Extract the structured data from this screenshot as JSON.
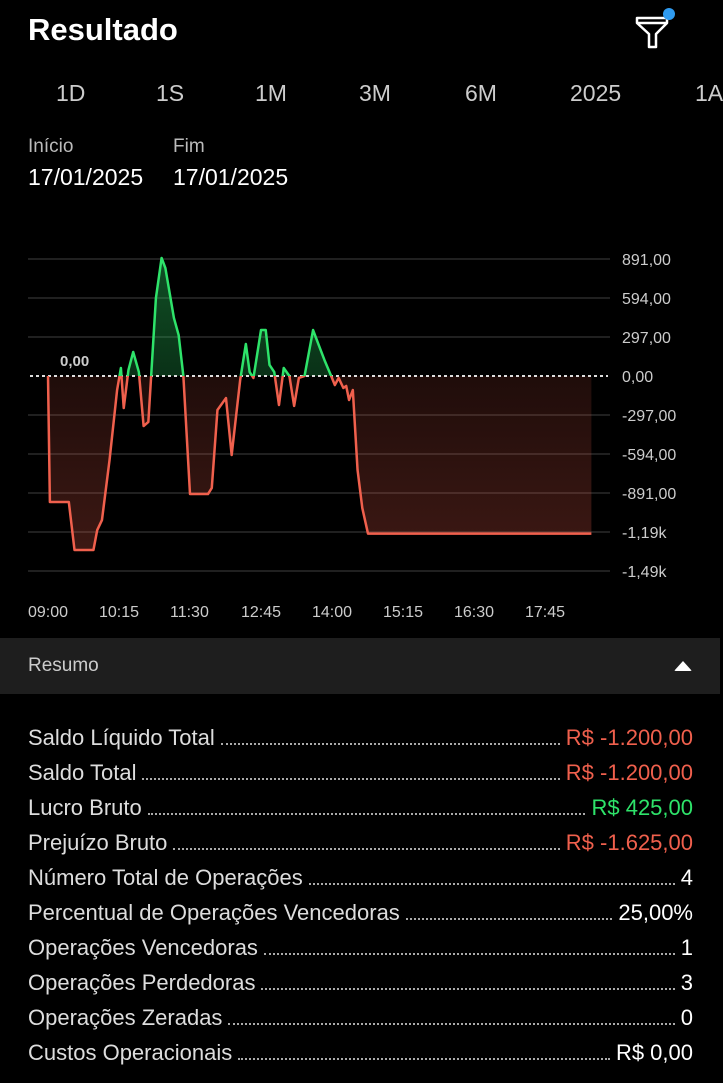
{
  "header": {
    "title": "Resultado",
    "filter_icon": "filter-icon",
    "badge_color": "#2f9bf0"
  },
  "periods": [
    "1D",
    "1S",
    "1M",
    "3M",
    "6M",
    "2025",
    "1A"
  ],
  "dates": {
    "start_label": "Início",
    "start_value": "17/01/2025",
    "end_label": "Fim",
    "end_value": "17/01/2025"
  },
  "chart_data": {
    "type": "area",
    "zero_label": "0,00",
    "y_ticks": [
      "891,00",
      "594,00",
      "297,00",
      "0,00",
      "-297,00",
      "-594,00",
      "-891,00",
      "-1,19k",
      "-1,49k"
    ],
    "y_tick_values": [
      891,
      594,
      297,
      0,
      -297,
      -594,
      -891,
      -1188,
      -1485
    ],
    "x_ticks": [
      "09:00",
      "10:15",
      "11:30",
      "12:45",
      "14:00",
      "15:15",
      "16:30",
      "17:45"
    ],
    "ylim": [
      -1485,
      891
    ],
    "colors": {
      "positive": "#2ee36a",
      "negative": "#f0604d"
    },
    "grid": true,
    "points": [
      [
        "09:00",
        0
      ],
      [
        "09:02",
        -960
      ],
      [
        "09:22",
        -960
      ],
      [
        "09:28",
        -1325
      ],
      [
        "09:48",
        -1325
      ],
      [
        "09:52",
        -1173
      ],
      [
        "09:57",
        -1097
      ],
      [
        "10:05",
        -640
      ],
      [
        "10:13",
        -107
      ],
      [
        "10:17",
        61
      ],
      [
        "10:20",
        -244
      ],
      [
        "10:25",
        46
      ],
      [
        "10:30",
        183
      ],
      [
        "10:36",
        30
      ],
      [
        "10:41",
        -381
      ],
      [
        "10:46",
        -350
      ],
      [
        "10:54",
        594
      ],
      [
        "11:00",
        899
      ],
      [
        "11:04",
        822
      ],
      [
        "11:13",
        442
      ],
      [
        "11:18",
        312
      ],
      [
        "11:23",
        0
      ],
      [
        "11:30",
        -899
      ],
      [
        "11:49",
        -899
      ],
      [
        "11:53",
        -853
      ],
      [
        "11:59",
        -259
      ],
      [
        "12:08",
        -168
      ],
      [
        "12:14",
        -602
      ],
      [
        "12:23",
        -30
      ],
      [
        "12:29",
        244
      ],
      [
        "12:33",
        30
      ],
      [
        "12:37",
        -15
      ],
      [
        "12:45",
        350
      ],
      [
        "12:50",
        350
      ],
      [
        "12:54",
        84
      ],
      [
        "12:59",
        30
      ],
      [
        "13:04",
        -221
      ],
      [
        "13:09",
        61
      ],
      [
        "13:15",
        0
      ],
      [
        "13:20",
        -228
      ],
      [
        "13:25",
        -15
      ],
      [
        "13:31",
        0
      ],
      [
        "13:40",
        350
      ],
      [
        "13:46",
        236
      ],
      [
        "13:52",
        122
      ],
      [
        "14:00",
        -15
      ],
      [
        "14:03",
        -69
      ],
      [
        "14:07",
        -15
      ],
      [
        "14:12",
        -91
      ],
      [
        "14:15",
        -76
      ],
      [
        "14:18",
        -183
      ],
      [
        "14:22",
        -107
      ],
      [
        "14:27",
        -716
      ],
      [
        "14:32",
        -1005
      ],
      [
        "14:38",
        -1200
      ],
      [
        "18:34",
        -1200
      ]
    ]
  },
  "resumo": {
    "title": "Resumo",
    "toggle_icon": "caret-up-icon"
  },
  "summary": [
    {
      "label": "Saldo Líquido Total",
      "value": "R$ -1.200,00",
      "tone": "neg"
    },
    {
      "label": "Saldo Total",
      "value": "R$ -1.200,00",
      "tone": "neg"
    },
    {
      "label": "Lucro Bruto",
      "value": "R$ 425,00",
      "tone": "pos"
    },
    {
      "label": "Prejuízo Bruto",
      "value": "R$ -1.625,00",
      "tone": "neg"
    },
    {
      "label": "Número Total de Operações",
      "value": "4",
      "tone": ""
    },
    {
      "label": "Percentual de Operações Vencedoras",
      "value": "25,00%",
      "tone": ""
    },
    {
      "label": "Operações Vencedoras",
      "value": "1",
      "tone": ""
    },
    {
      "label": "Operações Perdedoras",
      "value": "3",
      "tone": ""
    },
    {
      "label": "Operações Zeradas",
      "value": "0",
      "tone": ""
    },
    {
      "label": "Custos Operacionais",
      "value": "R$ 0,00",
      "tone": ""
    }
  ]
}
